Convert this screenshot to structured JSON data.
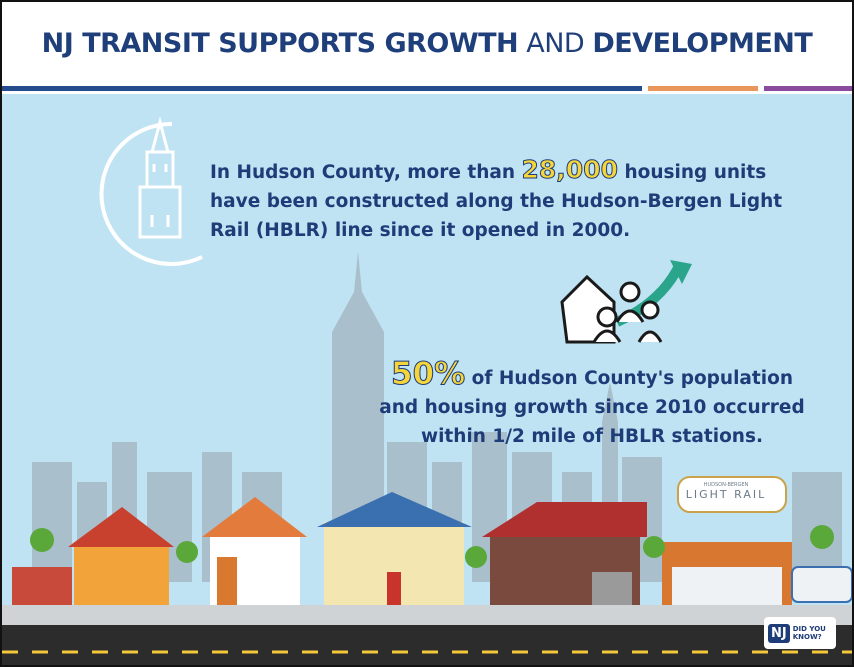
{
  "header": {
    "title_parts": [
      "NJ TRANSIT SUPPORTS GROWTH",
      "AND",
      "DEVELOPMENT"
    ]
  },
  "fact_1": {
    "lines": [
      [
        "In Hudson County, more than",
        "28,000",
        "housing units"
      ],
      [
        "have been constructed along the Hudson-Bergen Light"
      ],
      [
        "Rail (HBLR) line since it opened in 2000."
      ]
    ]
  },
  "fact_2": {
    "lines": [
      [
        "50%",
        "of Hudson County's population"
      ],
      [
        "and housing growth since 2010 occurred"
      ],
      [
        "within 1/2 mile of HBLR stations."
      ]
    ]
  },
  "station_sign": {
    "small": "HUDSON-BERGEN",
    "main": "LIGHT RAIL"
  },
  "badge": {
    "logo": "NJ",
    "text": [
      "DID YOU",
      "KNOW?"
    ]
  }
}
